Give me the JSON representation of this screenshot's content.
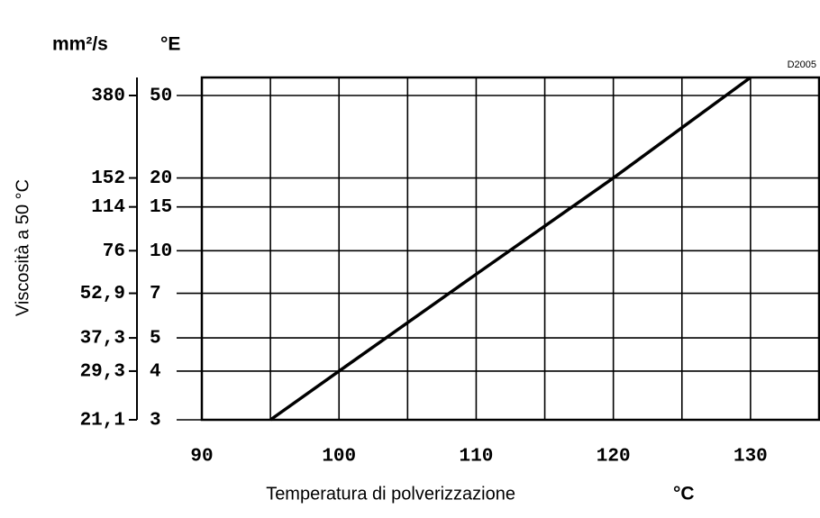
{
  "chart_data": {
    "type": "line",
    "y_unit_label": "mm²/s",
    "y2_unit_label": "°E",
    "ylabel": "Viscosità a 50 °C",
    "xlabel": "Temperatura di polverizzazione",
    "xlabel_unit": "°C",
    "annotation": "D2005",
    "yscale": "loglog",
    "xlim": [
      90,
      135
    ],
    "xticks": [
      90,
      100,
      110,
      120,
      130
    ],
    "xminorticks": [
      95,
      105,
      115,
      125
    ],
    "ylim": [
      21.1,
      474
    ],
    "yticks": [
      {
        "value": 380,
        "label": "50"
      },
      {
        "value": 152,
        "label": "20"
      },
      {
        "value": 114,
        "label": "15"
      },
      {
        "value": 76,
        "label": "10"
      },
      {
        "value": 52.9,
        "label": "7"
      },
      {
        "value": 37.3,
        "label": "5"
      },
      {
        "value": 29.3,
        "label": "4"
      },
      {
        "value": 21.1,
        "label": "3"
      }
    ],
    "y2ticks": [
      380,
      152,
      114,
      76,
      {
        "value": 52.9,
        "label": "52,9"
      },
      {
        "value": 37.3,
        "label": "37,3"
      },
      {
        "value": 29.3,
        "label": "29,3"
      },
      {
        "value": 21.1,
        "label": "21,1"
      }
    ],
    "grid": true,
    "x": [
      95,
      100,
      110,
      120,
      130
    ],
    "series": [
      {
        "color": "#000000",
        "values": [
          21.1,
          29.3,
          62,
          152,
          474
        ]
      }
    ]
  }
}
